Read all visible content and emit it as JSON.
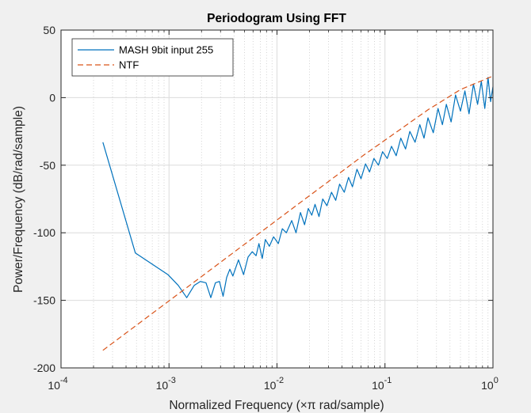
{
  "chart_data": {
    "type": "line",
    "title": "Periodogram Using FFT",
    "xlabel": "Normalized Frequency (×π rad/sample)",
    "ylabel": "Power/Frequency (dB/rad/sample)",
    "x_scale": "log",
    "xlim": [
      0.0001,
      1
    ],
    "ylim": [
      -200,
      50
    ],
    "x_ticks": [
      {
        "value": 0.0001,
        "base": "10",
        "exp": "-4"
      },
      {
        "value": 0.001,
        "base": "10",
        "exp": "-3"
      },
      {
        "value": 0.01,
        "base": "10",
        "exp": "-2"
      },
      {
        "value": 0.1,
        "base": "10",
        "exp": "-1"
      },
      {
        "value": 1,
        "base": "10",
        "exp": "0"
      }
    ],
    "y_ticks": [
      50,
      0,
      -50,
      -100,
      -150,
      -200
    ],
    "grid": true,
    "legend_position": "top-left",
    "series": [
      {
        "name": "MASH 9bit input 255",
        "color": "#0072BD",
        "style": "solid",
        "x": [
          0.000244,
          0.000488,
          0.000977,
          0.00122,
          0.00146,
          0.00171,
          0.00195,
          0.0022,
          0.00244,
          0.00269,
          0.00293,
          0.00317,
          0.00342,
          0.00366,
          0.0039,
          0.0044,
          0.0049,
          0.0054,
          0.0059,
          0.0064,
          0.0068,
          0.0073,
          0.0078,
          0.0085,
          0.0093,
          0.0103,
          0.0112,
          0.0122,
          0.0137,
          0.015,
          0.0165,
          0.018,
          0.0195,
          0.021,
          0.0225,
          0.0245,
          0.0265,
          0.029,
          0.032,
          0.035,
          0.038,
          0.042,
          0.046,
          0.05,
          0.055,
          0.06,
          0.066,
          0.072,
          0.079,
          0.087,
          0.095,
          0.105,
          0.115,
          0.127,
          0.14,
          0.155,
          0.17,
          0.19,
          0.21,
          0.23,
          0.25,
          0.28,
          0.31,
          0.34,
          0.37,
          0.41,
          0.45,
          0.5,
          0.55,
          0.6,
          0.66,
          0.72,
          0.78,
          0.84,
          0.9,
          0.95,
          1.0
        ],
        "y": [
          -33,
          -115,
          -131,
          -139,
          -148,
          -139,
          -136,
          -137,
          -148,
          -137,
          -136,
          -147,
          -133,
          -127,
          -132,
          -120,
          -131,
          -118,
          -114,
          -117,
          -108,
          -119,
          -105,
          -110,
          -103,
          -108,
          -97,
          -100,
          -91,
          -100,
          -85,
          -94,
          -82,
          -87,
          -79,
          -88,
          -75,
          -80,
          -70,
          -76,
          -64,
          -70,
          -59,
          -66,
          -53,
          -60,
          -49,
          -55,
          -45,
          -50,
          -40,
          -45,
          -36,
          -43,
          -30,
          -38,
          -25,
          -33,
          -20,
          -30,
          -15,
          -26,
          -8,
          -20,
          -5,
          -18,
          2,
          -10,
          5,
          -12,
          10,
          -5,
          12,
          -8,
          15,
          -3,
          8
        ]
      },
      {
        "name": "NTF",
        "color": "#D95319",
        "style": "dashed",
        "x": [
          0.000244,
          0.000488,
          0.000977,
          0.00195,
          0.0039,
          0.0078,
          0.0156,
          0.03125,
          0.0625,
          0.125,
          0.25,
          0.5,
          1.0
        ],
        "y": [
          -187,
          -169,
          -151,
          -133,
          -115,
          -97,
          -79,
          -61,
          -43,
          -26,
          -9,
          6,
          16
        ]
      }
    ]
  }
}
